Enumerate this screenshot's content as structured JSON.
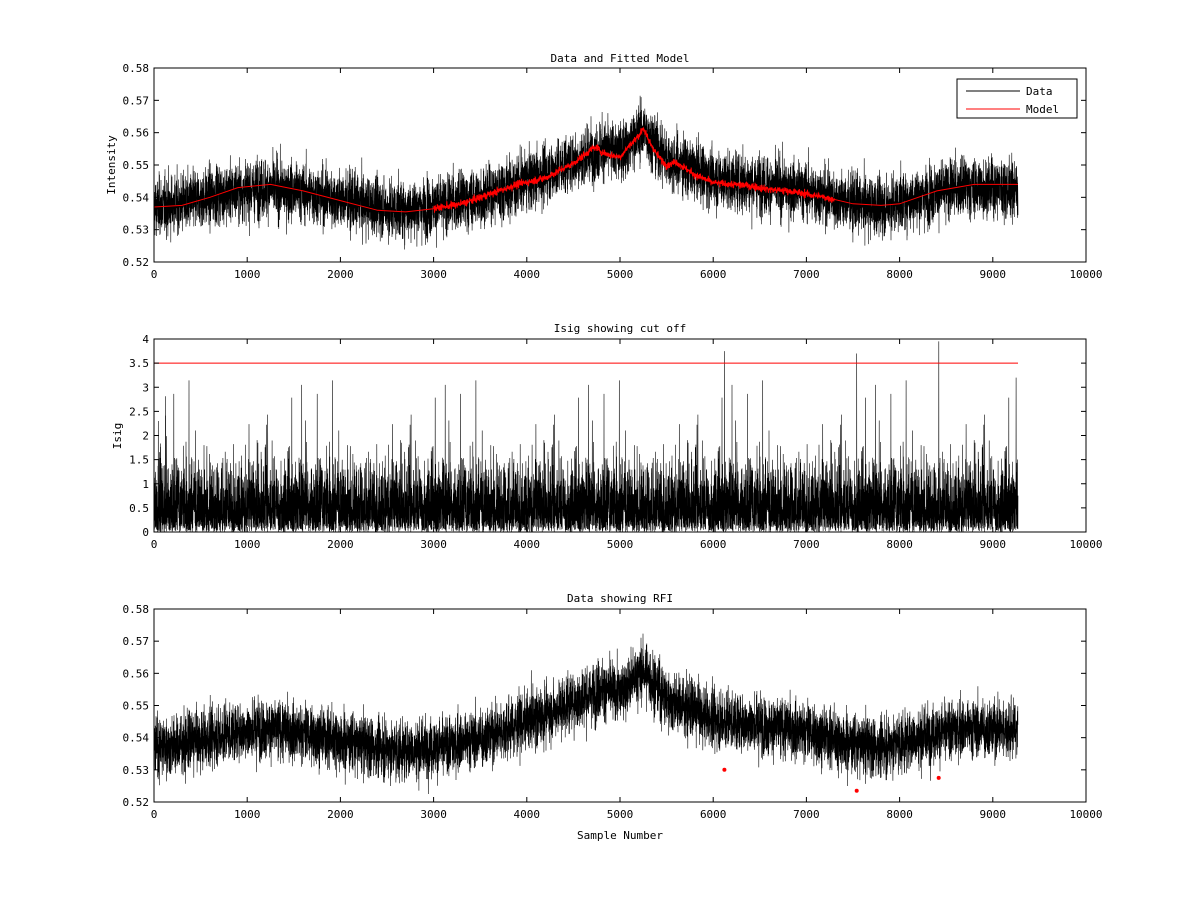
{
  "colors": {
    "data": "#000000",
    "model": "#ff0000",
    "cutoff": "#ff0000",
    "rfi": "#ff0000",
    "background": "#ffffff",
    "axes": "#000000"
  },
  "chart_data": [
    {
      "type": "line",
      "title": "Data and Fitted Model",
      "xlabel": "",
      "ylabel": "Intensity",
      "xlim": [
        0,
        10000
      ],
      "ylim": [
        0.52,
        0.58
      ],
      "xticks": [
        "0",
        "1000",
        "2000",
        "3000",
        "4000",
        "5000",
        "6000",
        "7000",
        "8000",
        "9000",
        "10000"
      ],
      "yticks": [
        "0.52",
        "0.53",
        "0.54",
        "0.55",
        "0.56",
        "0.57",
        "0.58"
      ],
      "grid": false,
      "legend": {
        "position": "top-right",
        "entries": [
          "Data",
          "Model"
        ]
      },
      "series": [
        {
          "name": "Data",
          "color": "#000000",
          "style": "noisy",
          "x_range": [
            0,
            9270
          ],
          "noise_sd": 0.0045,
          "trend": [
            [
              0,
              0.537
            ],
            [
              300,
              0.538
            ],
            [
              700,
              0.541
            ],
            [
              1200,
              0.543
            ],
            [
              1700,
              0.541
            ],
            [
              2200,
              0.538
            ],
            [
              2600,
              0.536
            ],
            [
              3000,
              0.537
            ],
            [
              3500,
              0.54
            ],
            [
              4000,
              0.545
            ],
            [
              4500,
              0.551
            ],
            [
              4800,
              0.555
            ],
            [
              5000,
              0.554
            ],
            [
              5250,
              0.561
            ],
            [
              5500,
              0.552
            ],
            [
              6000,
              0.546
            ],
            [
              6500,
              0.544
            ],
            [
              7000,
              0.542
            ],
            [
              7500,
              0.538
            ],
            [
              7800,
              0.537
            ],
            [
              8200,
              0.54
            ],
            [
              8600,
              0.543
            ],
            [
              9270,
              0.543
            ]
          ]
        },
        {
          "name": "Model",
          "color": "#ff0000",
          "style": "line",
          "x": [
            0,
            300,
            600,
            900,
            1250,
            1600,
            2000,
            2400,
            2700,
            3000,
            3300,
            3600,
            3900,
            4200,
            4500,
            4700,
            4750,
            4800,
            4900,
            5000,
            5100,
            5200,
            5250,
            5300,
            5400,
            5500,
            5600,
            5700,
            5800,
            6000,
            6200,
            6400,
            6600,
            6800,
            7000,
            7200,
            7500,
            7800,
            8000,
            8200,
            8400,
            8600,
            8800,
            9270
          ],
          "y": [
            0.537,
            0.5375,
            0.54,
            0.543,
            0.544,
            0.542,
            0.539,
            0.536,
            0.5355,
            0.5365,
            0.538,
            0.541,
            0.544,
            0.546,
            0.5505,
            0.555,
            0.5555,
            0.554,
            0.553,
            0.5525,
            0.556,
            0.559,
            0.5615,
            0.558,
            0.553,
            0.55,
            0.551,
            0.549,
            0.547,
            0.5445,
            0.544,
            0.5435,
            0.5425,
            0.542,
            0.541,
            0.54,
            0.538,
            0.5375,
            0.538,
            0.54,
            0.542,
            0.543,
            0.544,
            0.544
          ]
        }
      ]
    },
    {
      "type": "line",
      "title": "Isig showing cut off",
      "xlabel": "",
      "ylabel": "Isig",
      "xlim": [
        0,
        10000
      ],
      "ylim": [
        0,
        4
      ],
      "xticks": [
        "0",
        "1000",
        "2000",
        "3000",
        "4000",
        "5000",
        "6000",
        "7000",
        "8000",
        "9000",
        "10000"
      ],
      "yticks": [
        "0",
        "0.5",
        "1",
        "1.5",
        "2",
        "2.5",
        "3",
        "3.5",
        "4"
      ],
      "grid": false,
      "series": [
        {
          "color": "#000000",
          "style": "spiky",
          "x_range": [
            0,
            9270
          ],
          "spikes": [
            [
              6120,
              3.75
            ],
            [
              7540,
              3.7
            ],
            [
              8420,
              3.95
            ],
            [
              9250,
              3.2
            ]
          ]
        },
        {
          "color": "#ff0000",
          "style": "line",
          "x": [
            0,
            9270
          ],
          "y": [
            3.5,
            3.5
          ]
        }
      ]
    },
    {
      "type": "line",
      "title": "Data showing RFI",
      "xlabel": "Sample Number",
      "ylabel": "",
      "xlim": [
        0,
        10000
      ],
      "ylim": [
        0.52,
        0.58
      ],
      "xticks": [
        "0",
        "1000",
        "2000",
        "3000",
        "4000",
        "5000",
        "6000",
        "7000",
        "8000",
        "9000",
        "10000"
      ],
      "yticks": [
        "0.52",
        "0.53",
        "0.54",
        "0.55",
        "0.56",
        "0.57",
        "0.58"
      ],
      "grid": false,
      "series": [
        {
          "color": "#000000",
          "style": "noisy",
          "x_range": [
            0,
            9270
          ],
          "noise_sd": 0.0045,
          "trend": [
            [
              0,
              0.537
            ],
            [
              300,
              0.538
            ],
            [
              700,
              0.541
            ],
            [
              1200,
              0.543
            ],
            [
              1700,
              0.541
            ],
            [
              2200,
              0.538
            ],
            [
              2600,
              0.536
            ],
            [
              3000,
              0.537
            ],
            [
              3500,
              0.54
            ],
            [
              4000,
              0.545
            ],
            [
              4500,
              0.551
            ],
            [
              4800,
              0.555
            ],
            [
              5000,
              0.554
            ],
            [
              5250,
              0.561
            ],
            [
              5500,
              0.552
            ],
            [
              6000,
              0.546
            ],
            [
              6500,
              0.544
            ],
            [
              7000,
              0.542
            ],
            [
              7500,
              0.538
            ],
            [
              7800,
              0.537
            ],
            [
              8200,
              0.54
            ],
            [
              8600,
              0.543
            ],
            [
              9270,
              0.543
            ]
          ]
        },
        {
          "color": "#ff0000",
          "style": "markers",
          "x": [
            6120,
            7540,
            8420
          ],
          "y": [
            0.53,
            0.5235,
            0.5275
          ]
        }
      ]
    }
  ]
}
